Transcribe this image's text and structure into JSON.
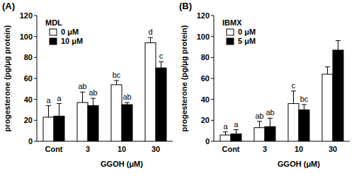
{
  "chart_data": [
    {
      "type": "bar",
      "title": "(A)",
      "y_label": "progesterone (pg/μg protein)",
      "x_label": "GGOH (μM)",
      "legend_title": "MDL",
      "legend": "upper left",
      "categories": [
        "Cont",
        "3",
        "10",
        "30"
      ],
      "series": [
        {
          "name": "0 μM",
          "color": "#ffffff",
          "values": [
            23,
            37,
            54,
            94
          ],
          "errors": [
            11,
            10,
            4,
            5
          ],
          "letters": [
            "a",
            "ab",
            "bc",
            "d"
          ]
        },
        {
          "name": "10 μM",
          "color": "#000000",
          "values": [
            24,
            34,
            35,
            70
          ],
          "errors": [
            12,
            7,
            2,
            6
          ],
          "letters": [
            "a",
            "ab",
            "ab",
            "c"
          ]
        }
      ],
      "ylim": [
        0,
        120
      ],
      "yticks": [
        0,
        20,
        40,
        60,
        80,
        100,
        120
      ]
    },
    {
      "type": "bar",
      "title": "(B)",
      "y_label": "progesterone (pg/μg protein)",
      "x_label": "GGOH (μM)",
      "legend_title": "IBMX",
      "legend": "upper left",
      "categories": [
        "Cont",
        "3",
        "10",
        "30"
      ],
      "series": [
        {
          "name": "0 μM",
          "color": "#ffffff",
          "values": [
            6,
            13,
            36,
            64
          ],
          "errors": [
            3,
            6,
            12,
            7
          ],
          "letters": [
            "a",
            "ab",
            "c",
            null
          ]
        },
        {
          "name": "5 μM",
          "color": "#000000",
          "values": [
            7,
            14,
            30,
            87
          ],
          "errors": [
            4,
            8,
            5,
            9
          ],
          "letters": [
            "a",
            "ab",
            "bc",
            null
          ]
        }
      ],
      "ylim": [
        0,
        120
      ],
      "yticks": [
        0,
        20,
        40,
        60,
        80,
        100,
        120
      ]
    }
  ]
}
